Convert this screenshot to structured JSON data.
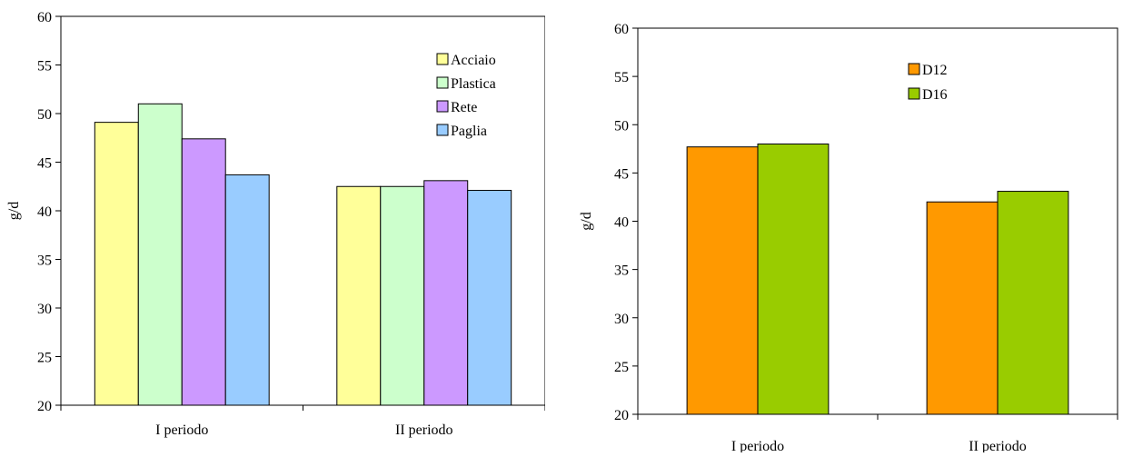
{
  "chart_data": [
    {
      "type": "bar",
      "categories": [
        "I periodo",
        "II periodo"
      ],
      "series": [
        {
          "name": "Acciaio",
          "values": [
            49.1,
            42.5
          ]
        },
        {
          "name": "Plastica",
          "values": [
            51.0,
            42.5
          ]
        },
        {
          "name": "Rete",
          "values": [
            47.4,
            43.1
          ]
        },
        {
          "name": "Paglia",
          "values": [
            43.7,
            42.1
          ]
        }
      ],
      "colors": [
        "#ffff99",
        "#ccffcc",
        "#cc99ff",
        "#99ccff"
      ],
      "ylabel": "g/d",
      "ylim": [
        20,
        60
      ],
      "yticks": [
        "20",
        "25",
        "30",
        "35",
        "40",
        "45",
        "50",
        "55",
        "60"
      ],
      "grid": false,
      "legend": "top-right"
    },
    {
      "type": "bar",
      "categories": [
        "I periodo",
        "II periodo"
      ],
      "series": [
        {
          "name": "D12",
          "values": [
            47.7,
            42.0
          ]
        },
        {
          "name": "D16",
          "values": [
            48.0,
            43.1
          ]
        }
      ],
      "colors": [
        "#ff9900",
        "#99cc00"
      ],
      "ylabel": "g/d",
      "ylim": [
        20,
        60
      ],
      "yticks": [
        "20",
        "25",
        "30",
        "35",
        "40",
        "45",
        "50",
        "55",
        "60"
      ],
      "grid": false,
      "legend": "top-right"
    }
  ]
}
